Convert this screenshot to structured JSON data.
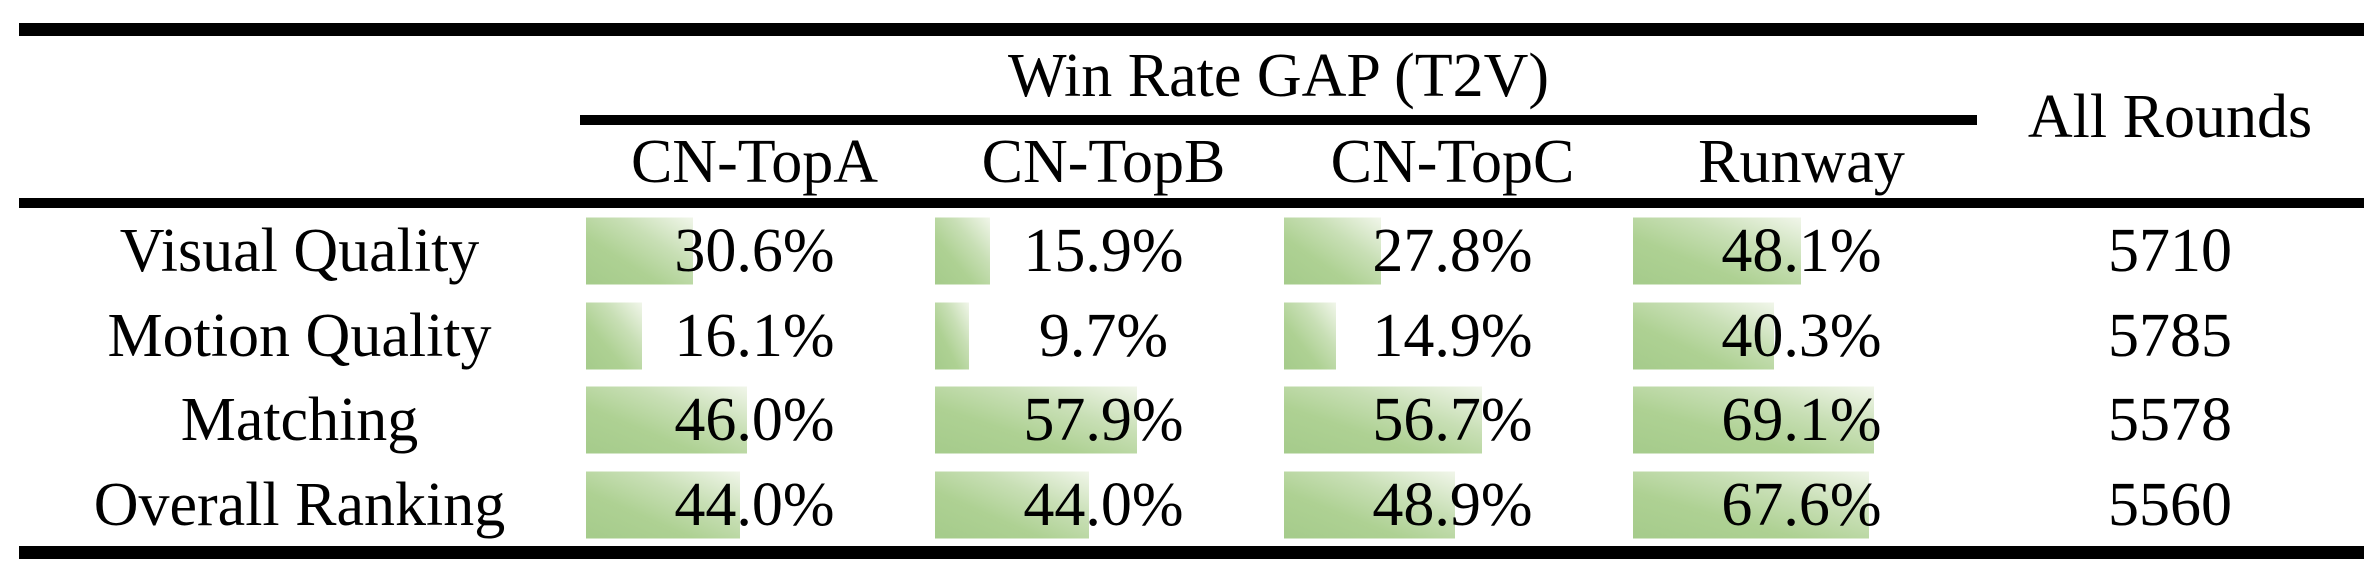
{
  "table": {
    "span_header": "Win Rate GAP (T2V)",
    "all_rounds_header": "All Rounds",
    "columns": [
      "CN-TopA",
      "CN-TopB",
      "CN-TopC",
      "Runway"
    ],
    "rows": [
      {
        "label": "Visual Quality",
        "cells": [
          "30.6%",
          "15.9%",
          "27.8%",
          "48.1%"
        ],
        "all_rounds": "5710"
      },
      {
        "label": "Motion Quality",
        "cells": [
          "16.1%",
          "9.7%",
          "14.9%",
          "40.3%"
        ],
        "all_rounds": "5785"
      },
      {
        "label": "Matching",
        "cells": [
          "46.0%",
          "57.9%",
          "56.7%",
          "69.1%"
        ],
        "all_rounds": "5578"
      },
      {
        "label": "Overall Ranking",
        "cells": [
          "44.0%",
          "44.0%",
          "48.9%",
          "67.6%"
        ],
        "all_rounds": "5560"
      }
    ],
    "bar_gradient_start": "#a5cb8b",
    "bar_gradient_end": "#f1f6ea",
    "rule_color": "#000000"
  },
  "chart_data": {
    "type": "table",
    "title": "Win Rate GAP (T2V)",
    "columns": [
      "CN-TopA",
      "CN-TopB",
      "CN-TopC",
      "Runway",
      "All Rounds"
    ],
    "row_labels": [
      "Visual Quality",
      "Motion Quality",
      "Matching",
      "Overall Ranking"
    ],
    "series": [
      {
        "name": "Visual Quality",
        "win_rate_gap_pct": [
          30.6,
          15.9,
          27.8,
          48.1
        ],
        "all_rounds": 5710
      },
      {
        "name": "Motion Quality",
        "win_rate_gap_pct": [
          16.1,
          9.7,
          14.9,
          40.3
        ],
        "all_rounds": 5785
      },
      {
        "name": "Matching",
        "win_rate_gap_pct": [
          46.0,
          57.9,
          56.7,
          69.1
        ],
        "all_rounds": 5578
      },
      {
        "name": "Overall Ranking",
        "win_rate_gap_pct": [
          44.0,
          44.0,
          48.9,
          67.6
        ],
        "all_rounds": 5560
      }
    ],
    "layout": "data bars behind percentages, bar width proportional to value (100% = full cell width), green-to-white diagonal gradient"
  }
}
